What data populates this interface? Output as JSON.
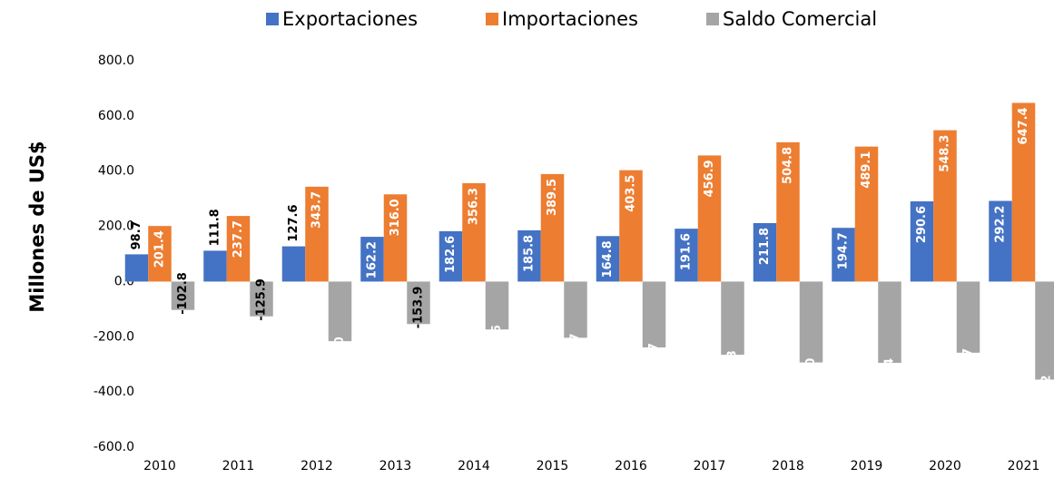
{
  "chart_data": {
    "type": "bar",
    "y_axis_label": "Millones de US$",
    "categories": [
      "2010",
      "2011",
      "2012",
      "2013",
      "2014",
      "2015",
      "2016",
      "2017",
      "2018",
      "2019",
      "2020",
      "2021"
    ],
    "series": [
      {
        "name": "Exportaciones",
        "color": "#4472c4",
        "values": [
          98.7,
          111.8,
          127.6,
          162.2,
          182.6,
          185.8,
          164.8,
          191.6,
          211.8,
          194.7,
          290.6,
          292.2
        ],
        "value_labels": [
          "98.7",
          "111.8",
          "127.6",
          "162.2",
          "182.6",
          "185.8",
          "164.8",
          "191.6",
          "211.8",
          "194.7",
          "290.6",
          "292.2"
        ]
      },
      {
        "name": "Importaciones",
        "color": "#ed7d31",
        "values": [
          201.4,
          237.7,
          343.7,
          316.0,
          356.3,
          389.5,
          403.5,
          456.9,
          504.8,
          489.1,
          548.3,
          647.4
        ],
        "value_labels": [
          "201.4",
          "237.7",
          "343.7",
          "316.0",
          "356.3",
          "389.5",
          "403.5",
          "456.9",
          "504.8",
          "489.1",
          "548.3",
          "647.4"
        ]
      },
      {
        "name": "Saldo Comercial",
        "color": "#a5a5a5",
        "values": [
          -102.8,
          -125.9,
          -216.0,
          -153.9,
          -173.6,
          -203.7,
          -238.7,
          -265.3,
          -293.0,
          -294.4,
          -257.7,
          -355.2
        ],
        "value_labels": [
          "-102.8",
          "-125.9",
          "-216.0",
          "-153.9",
          "-173.6",
          "-203.7",
          "-238.7",
          "-265.3",
          "-293.0",
          "-294.4",
          "-257.7",
          "-355.2"
        ]
      }
    ],
    "ylim": [
      -600,
      800
    ],
    "yticks": [
      {
        "value": -600,
        "label": "-600.0"
      },
      {
        "value": -400,
        "label": "-400.0"
      },
      {
        "value": -200,
        "label": "-200.0"
      },
      {
        "value": 0,
        "label": "0.0"
      },
      {
        "value": 200,
        "label": "200.0"
      },
      {
        "value": 400,
        "label": "400.0"
      },
      {
        "value": 600,
        "label": "600.0"
      },
      {
        "value": 800,
        "label": "800.0"
      }
    ],
    "grid": false,
    "legend": "top"
  }
}
